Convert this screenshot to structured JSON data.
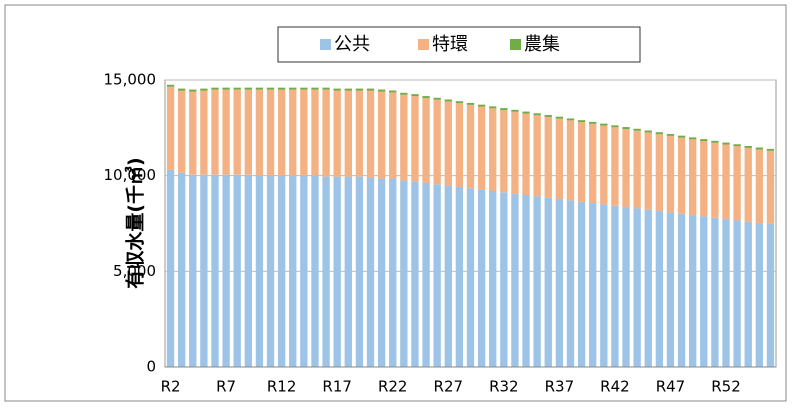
{
  "chart_data": {
    "type": "stacked_bar",
    "y_label": "有収水量(千㎥)",
    "categories": [
      "R2",
      null,
      null,
      null,
      null,
      "R7",
      null,
      null,
      null,
      null,
      "R12",
      null,
      null,
      null,
      null,
      "R17",
      null,
      null,
      null,
      null,
      "R22",
      null,
      null,
      null,
      null,
      "R27",
      null,
      null,
      null,
      null,
      "R32",
      null,
      null,
      null,
      null,
      "R37",
      null,
      null,
      null,
      null,
      "R42",
      null,
      null,
      null,
      null,
      "R47",
      null,
      null,
      null,
      null,
      "R52",
      null,
      null,
      null,
      null
    ],
    "series": [
      {
        "name": "公共",
        "color": "#9dc3e6",
        "values": [
          10300,
          10150,
          10050,
          10050,
          10050,
          10050,
          10050,
          10050,
          10000,
          10000,
          10000,
          10000,
          10000,
          10000,
          9950,
          9950,
          9950,
          9950,
          9900,
          9850,
          9850,
          9750,
          9700,
          9620,
          9550,
          9480,
          9410,
          9340,
          9270,
          9200,
          9130,
          9060,
          8990,
          8920,
          8850,
          8780,
          8710,
          8640,
          8570,
          8500,
          8430,
          8360,
          8290,
          8220,
          8150,
          8080,
          8010,
          7940,
          7870,
          7800,
          7730,
          7660,
          7590,
          7530,
          7480
        ]
      },
      {
        "name": "特環",
        "color": "#f4b183",
        "values": [
          4350,
          4300,
          4350,
          4400,
          4450,
          4450,
          4450,
          4450,
          4500,
          4500,
          4500,
          4500,
          4500,
          4500,
          4550,
          4500,
          4500,
          4500,
          4550,
          4550,
          4500,
          4480,
          4460,
          4440,
          4420,
          4400,
          4380,
          4360,
          4340,
          4320,
          4300,
          4280,
          4260,
          4240,
          4220,
          4200,
          4180,
          4160,
          4140,
          4120,
          4100,
          4080,
          4060,
          4040,
          4020,
          4000,
          3980,
          3960,
          3940,
          3920,
          3900,
          3880,
          3860,
          3840,
          3820
        ]
      },
      {
        "name": "農集",
        "color": "#70ad47",
        "values": [
          100,
          100,
          100,
          100,
          100,
          100,
          100,
          100,
          100,
          100,
          100,
          100,
          100,
          100,
          100,
          100,
          100,
          100,
          100,
          100,
          100,
          100,
          100,
          100,
          100,
          100,
          100,
          100,
          100,
          100,
          100,
          100,
          100,
          100,
          100,
          100,
          100,
          100,
          100,
          100,
          100,
          100,
          100,
          100,
          100,
          100,
          100,
          100,
          100,
          100,
          100,
          100,
          100,
          100,
          100
        ]
      }
    ],
    "ylim": [
      0,
      15000
    ],
    "yticks": [
      0,
      {
        "value": 5000,
        "label": "5,000"
      },
      {
        "value": 10000,
        "label": "10,000"
      },
      {
        "value": 15000,
        "label": "15,000"
      }
    ],
    "grid": true,
    "legend": "top"
  }
}
